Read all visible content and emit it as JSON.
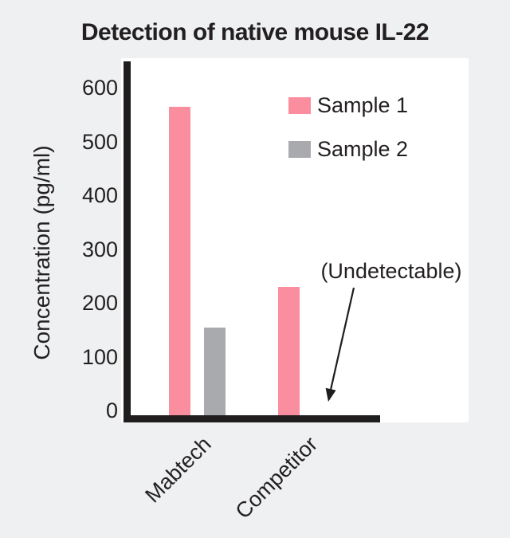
{
  "title": "Detection of native mouse IL-22",
  "colors": {
    "background": "#eef0f2",
    "panel": "#ffffff",
    "axis": "#1f1d1e",
    "text": "#231f20",
    "sample1": "#fb8e9e",
    "sample2": "#a9aaad"
  },
  "chart_data": {
    "type": "bar",
    "title": "Detection of native mouse IL-22",
    "categories": [
      "Mabtech",
      "Competitor"
    ],
    "series": [
      {
        "name": "Sample 1",
        "color": "#fb8e9e",
        "values": [
          565,
          235
        ]
      },
      {
        "name": "Sample 2",
        "color": "#a9aaad",
        "values": [
          160,
          null
        ]
      }
    ],
    "xlabel": "",
    "ylabel": "Concentration (pg/ml)",
    "yticks": [
      0,
      100,
      200,
      300,
      400,
      500,
      600
    ],
    "ylim": [
      0,
      648
    ],
    "grid": false,
    "legend_position": "upper right inside plot",
    "annotation": {
      "text": "(Undetectable)",
      "refers_to": "Competitor / Sample 2 (value below detection limit)"
    }
  }
}
